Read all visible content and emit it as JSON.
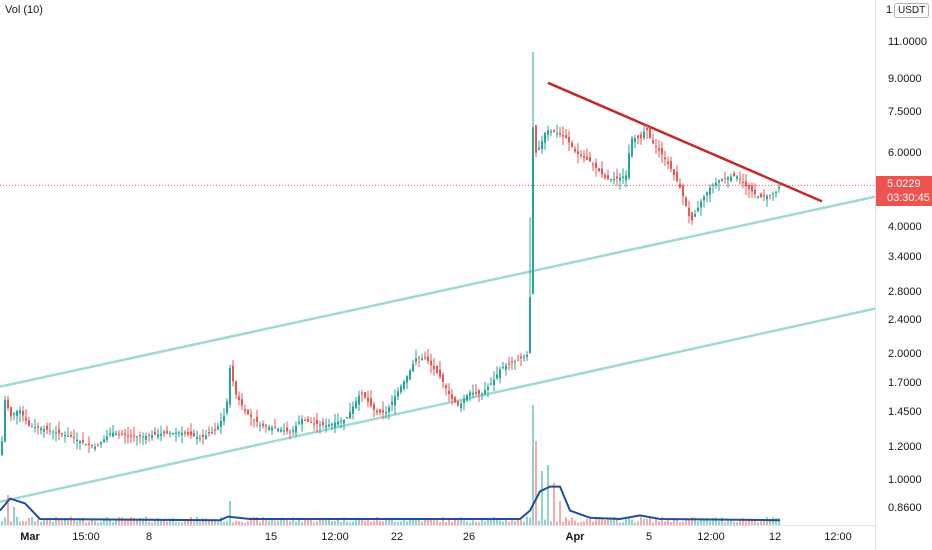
{
  "chart_data": {
    "type": "candlestick",
    "symbol_currency": "USDT",
    "scale_mode": "1",
    "volume_indicator": "Vol (10)",
    "last_price": "5.0229",
    "countdown": "03:30:45",
    "y_scale": "log",
    "y_ticks": [
      "11.0000",
      "9.0000",
      "7.5000",
      "6.0000",
      "5.0229",
      "4.0000",
      "3.4000",
      "2.8000",
      "2.4000",
      "2.0000",
      "1.7000",
      "1.4500",
      "1.2000",
      "1.0000",
      "0.8600"
    ],
    "x_ticks": [
      {
        "label": "Mar",
        "bold": true
      },
      {
        "label": "15:00",
        "bold": false
      },
      {
        "label": "8",
        "bold": false
      },
      {
        "label": "15",
        "bold": false
      },
      {
        "label": "12:00",
        "bold": false
      },
      {
        "label": "22",
        "bold": false
      },
      {
        "label": "26",
        "bold": false
      },
      {
        "label": "Apr",
        "bold": true
      },
      {
        "label": "5",
        "bold": false
      },
      {
        "label": "12:00",
        "bold": false
      },
      {
        "label": "12",
        "bold": false
      },
      {
        "label": "12:00",
        "bold": false
      }
    ],
    "price_path": [
      [
        0,
        1.15
      ],
      [
        4,
        1.55
      ],
      [
        10,
        1.42
      ],
      [
        18,
        1.48
      ],
      [
        28,
        1.35
      ],
      [
        40,
        1.33
      ],
      [
        55,
        1.3
      ],
      [
        70,
        1.27
      ],
      [
        85,
        1.22
      ],
      [
        95,
        1.2
      ],
      [
        110,
        1.3
      ],
      [
        125,
        1.28
      ],
      [
        140,
        1.27
      ],
      [
        160,
        1.29
      ],
      [
        180,
        1.3
      ],
      [
        200,
        1.26
      ],
      [
        215,
        1.32
      ],
      [
        225,
        1.45
      ],
      [
        229,
        1.85
      ],
      [
        235,
        1.6
      ],
      [
        245,
        1.45
      ],
      [
        260,
        1.35
      ],
      [
        275,
        1.33
      ],
      [
        290,
        1.3
      ],
      [
        300,
        1.4
      ],
      [
        310,
        1.37
      ],
      [
        325,
        1.35
      ],
      [
        345,
        1.4
      ],
      [
        360,
        1.62
      ],
      [
        375,
        1.45
      ],
      [
        385,
        1.45
      ],
      [
        395,
        1.6
      ],
      [
        405,
        1.75
      ],
      [
        415,
        1.95
      ],
      [
        425,
        1.95
      ],
      [
        432,
        1.85
      ],
      [
        440,
        1.75
      ],
      [
        450,
        1.57
      ],
      [
        458,
        1.5
      ],
      [
        468,
        1.62
      ],
      [
        480,
        1.6
      ],
      [
        492,
        1.72
      ],
      [
        500,
        1.85
      ],
      [
        510,
        1.9
      ],
      [
        520,
        1.95
      ],
      [
        528,
        2.0
      ],
      [
        532,
        6.9
      ],
      [
        535,
        6.0
      ],
      [
        540,
        6.3
      ],
      [
        545,
        6.8
      ],
      [
        555,
        6.7
      ],
      [
        565,
        6.5
      ],
      [
        575,
        6.0
      ],
      [
        590,
        5.7
      ],
      [
        605,
        5.2
      ],
      [
        615,
        5.2
      ],
      [
        625,
        5.3
      ],
      [
        630,
        6.5
      ],
      [
        640,
        6.5
      ],
      [
        645,
        6.9
      ],
      [
        650,
        6.4
      ],
      [
        660,
        6.0
      ],
      [
        670,
        5.5
      ],
      [
        680,
        4.9
      ],
      [
        690,
        4.1
      ],
      [
        700,
        4.6
      ],
      [
        710,
        5.0
      ],
      [
        720,
        5.2
      ],
      [
        735,
        5.3
      ],
      [
        745,
        5.0
      ],
      [
        758,
        4.7
      ],
      [
        768,
        4.75
      ],
      [
        775,
        4.85
      ],
      [
        779,
        5.02
      ]
    ],
    "trendlines": [
      {
        "name": "resistance",
        "color": "#c62828",
        "from": [
          548,
          8.8
        ],
        "to": [
          822,
          4.6
        ]
      },
      {
        "name": "channel-upper",
        "color": "#9ed9d5",
        "from": [
          0,
          1.67
        ],
        "to": [
          875,
          4.72
        ]
      },
      {
        "name": "channel-lower",
        "color": "#9ed9d5",
        "from": [
          0,
          0.89
        ],
        "to": [
          875,
          2.56
        ]
      }
    ],
    "volume_spikes": [
      {
        "x": 228,
        "v": 0.2
      },
      {
        "x": 531,
        "v": 1.0
      },
      {
        "x": 535,
        "v": 0.7
      },
      {
        "x": 540,
        "v": 0.45
      },
      {
        "x": 547,
        "v": 0.5
      },
      {
        "x": 553,
        "v": 0.35
      },
      {
        "x": 560,
        "v": 0.2
      },
      {
        "x": 8,
        "v": 0.25
      },
      {
        "x": 12,
        "v": 0.15
      }
    ],
    "volume_ma": [
      [
        0,
        0.12
      ],
      [
        10,
        0.22
      ],
      [
        25,
        0.18
      ],
      [
        40,
        0.05
      ],
      [
        220,
        0.04
      ],
      [
        228,
        0.07
      ],
      [
        250,
        0.05
      ],
      [
        520,
        0.05
      ],
      [
        530,
        0.12
      ],
      [
        540,
        0.28
      ],
      [
        550,
        0.32
      ],
      [
        560,
        0.32
      ],
      [
        570,
        0.12
      ],
      [
        590,
        0.06
      ],
      [
        620,
        0.05
      ],
      [
        640,
        0.08
      ],
      [
        660,
        0.05
      ],
      [
        780,
        0.04
      ]
    ],
    "colors": {
      "up": "#26a69a",
      "down": "#ef5350",
      "volume_ma": "#1f4e9c",
      "last_price": "#ef5350"
    }
  }
}
